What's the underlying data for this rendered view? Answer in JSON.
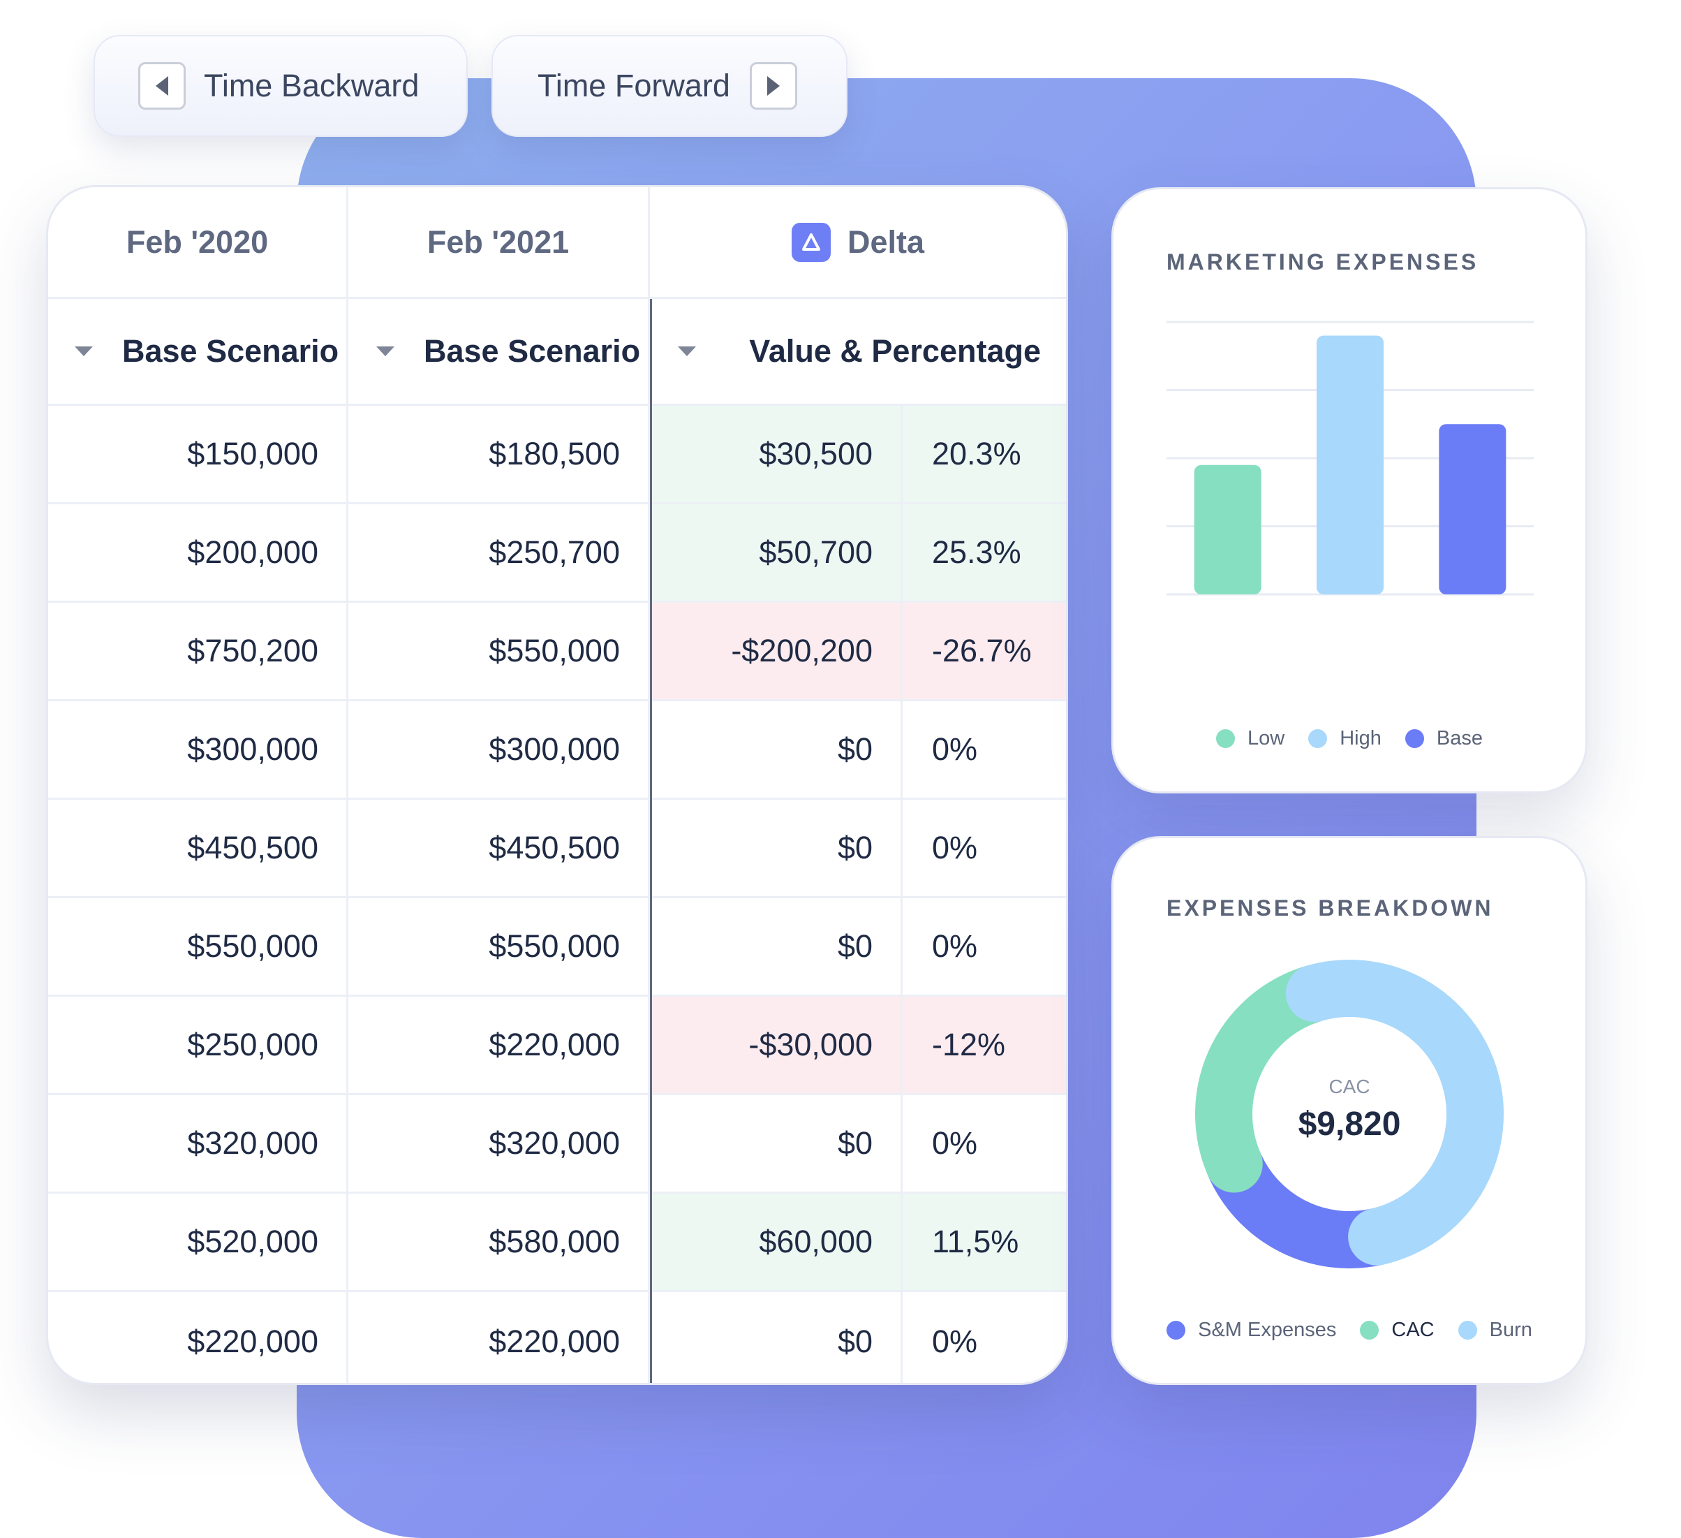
{
  "controls": {
    "time_backward_label": "Time Backward",
    "time_forward_label": "Time Forward"
  },
  "table": {
    "col1_date": "Feb '2020",
    "col2_date": "Feb '2021",
    "col3_title": "Delta",
    "col1_scenario": "Base Scenario",
    "col2_scenario": "Base Scenario",
    "col3_mode": "Value & Percentage",
    "rows": [
      {
        "v2020": "$150,000",
        "v2021": "$180,500",
        "delta": "$30,500",
        "pct": "20.3%",
        "status": "positive"
      },
      {
        "v2020": "$200,000",
        "v2021": "$250,700",
        "delta": "$50,700",
        "pct": "25.3%",
        "status": "positive"
      },
      {
        "v2020": "$750,200",
        "v2021": "$550,000",
        "delta": "-$200,200",
        "pct": "-26.7%",
        "status": "negative"
      },
      {
        "v2020": "$300,000",
        "v2021": "$300,000",
        "delta": "$0",
        "pct": "0%",
        "status": "neutral"
      },
      {
        "v2020": "$450,500",
        "v2021": "$450,500",
        "delta": "$0",
        "pct": "0%",
        "status": "neutral"
      },
      {
        "v2020": "$550,000",
        "v2021": "$550,000",
        "delta": "$0",
        "pct": "0%",
        "status": "neutral"
      },
      {
        "v2020": "$250,000",
        "v2021": "$220,000",
        "delta": "-$30,000",
        "pct": "-12%",
        "status": "negative"
      },
      {
        "v2020": "$320,000",
        "v2021": "$320,000",
        "delta": "$0",
        "pct": "0%",
        "status": "neutral"
      },
      {
        "v2020": "$520,000",
        "v2021": "$580,000",
        "delta": "$60,000",
        "pct": "11,5%",
        "status": "positive"
      },
      {
        "v2020": "$220,000",
        "v2021": "$220,000",
        "delta": "$0",
        "pct": "0%",
        "status": "neutral"
      }
    ]
  },
  "marketing": {
    "title": "MARKETING EXPENSES"
  },
  "breakdown": {
    "title": "EXPENSES BREAKDOWN",
    "center_label": "CAC",
    "center_value": "$9,820"
  },
  "colors": {
    "green": "#86dfc0",
    "light_blue": "#a8d8fb",
    "indigo": "#6b7cf7",
    "positive_bg": "#edf8f3",
    "negative_bg": "#fdecef"
  },
  "chart_data": [
    {
      "type": "bar",
      "categories": [
        "Low",
        "High",
        "Base"
      ],
      "series": [
        {
          "values": [
            1.9,
            3.8,
            2.5
          ]
        }
      ],
      "ylim": [
        0,
        4
      ],
      "grid": true,
      "legend": "bottom",
      "colors": [
        "#86dfc0",
        "#a8d8fb",
        "#6b7cf7"
      ]
    },
    {
      "type": "pie",
      "donut": true,
      "labels": [
        "S&M Expenses",
        "CAC",
        "Burn"
      ],
      "values": [
        22,
        27,
        51
      ],
      "legend": "bottom",
      "colors": [
        "#6b7cf7",
        "#86dfc0",
        "#a8d8fb"
      ]
    }
  ]
}
